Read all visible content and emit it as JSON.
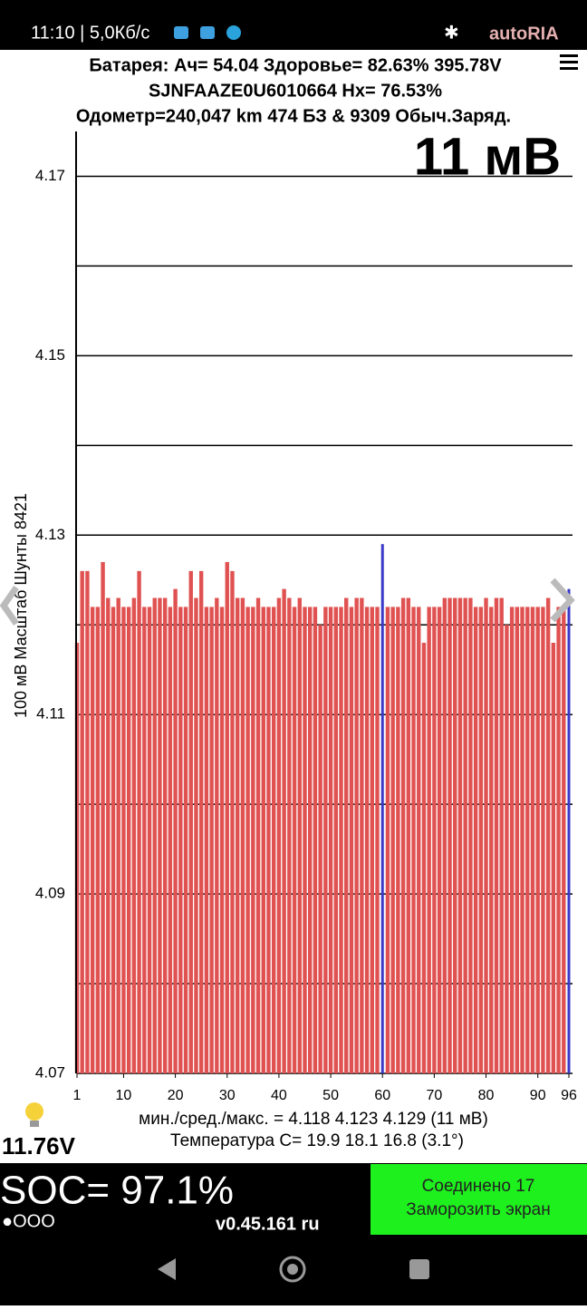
{
  "status_bar": {
    "time": "11:10 | 5,0Кб/с",
    "watermark": "autoRIA"
  },
  "header": {
    "line1": "Батарея:  Ач= 54.04  Здоровье= 82.63%   395.78V",
    "line2": "SJNFAAZE0U6010664   Hx= 76.53%",
    "line3": "Одометр=240,047 km 474 БЗ & 9309 Обыч.Заряд."
  },
  "chart_data": {
    "type": "bar",
    "y_label": "100 мВ Масштаб  Шунты 8421",
    "overlay": "11 мВ",
    "x": [
      1,
      2,
      3,
      4,
      5,
      6,
      7,
      8,
      9,
      10,
      11,
      12,
      13,
      14,
      15,
      16,
      17,
      18,
      19,
      20,
      21,
      22,
      23,
      24,
      25,
      26,
      27,
      28,
      29,
      30,
      31,
      32,
      33,
      34,
      35,
      36,
      37,
      38,
      39,
      40,
      41,
      42,
      43,
      44,
      45,
      46,
      47,
      48,
      49,
      50,
      51,
      52,
      53,
      54,
      55,
      56,
      57,
      58,
      59,
      60,
      61,
      62,
      63,
      64,
      65,
      66,
      67,
      68,
      69,
      70,
      71,
      72,
      73,
      74,
      75,
      76,
      77,
      78,
      79,
      80,
      81,
      82,
      83,
      84,
      85,
      86,
      87,
      88,
      89,
      90,
      91,
      92,
      93,
      94,
      95,
      96
    ],
    "values": [
      4.118,
      4.126,
      4.126,
      4.122,
      4.122,
      4.127,
      4.123,
      4.122,
      4.123,
      4.122,
      4.122,
      4.123,
      4.126,
      4.122,
      4.122,
      4.123,
      4.123,
      4.123,
      4.122,
      4.124,
      4.122,
      4.122,
      4.126,
      4.123,
      4.126,
      4.122,
      4.122,
      4.123,
      4.122,
      4.127,
      4.126,
      4.123,
      4.123,
      4.122,
      4.122,
      4.123,
      4.122,
      4.122,
      4.122,
      4.123,
      4.124,
      4.123,
      4.122,
      4.123,
      4.122,
      4.122,
      4.122,
      4.12,
      4.122,
      4.122,
      4.122,
      4.122,
      4.123,
      4.122,
      4.123,
      4.123,
      4.122,
      4.122,
      4.122,
      4.129,
      4.122,
      4.122,
      4.122,
      4.123,
      4.123,
      4.122,
      4.122,
      4.118,
      4.122,
      4.122,
      4.122,
      4.123,
      4.123,
      4.123,
      4.123,
      4.123,
      4.123,
      4.122,
      4.122,
      4.123,
      4.122,
      4.123,
      4.123,
      4.12,
      4.122,
      4.122,
      4.122,
      4.122,
      4.122,
      4.122,
      4.122,
      4.123,
      4.118,
      4.122,
      4.122,
      4.124
    ],
    "color": "#e05252",
    "highlight": {
      "color": "#3a3ac8",
      "x": [
        60,
        96
      ]
    },
    "xlim": [
      1,
      96
    ],
    "xticks": [
      1,
      10,
      20,
      30,
      40,
      50,
      60,
      70,
      80,
      90,
      96
    ],
    "ylim": [
      4.07,
      4.175
    ],
    "yticks": [
      4.07,
      4.09,
      4.11,
      4.13,
      4.15,
      4.17
    ],
    "minor_grid": [
      4.08,
      4.1,
      4.12,
      4.14,
      4.16
    ],
    "grid": true
  },
  "footer": {
    "stats": "мин./сред./макс. = 4.118 4.123 4.129  (11 мВ)",
    "temperature": "Температура С= 19.9  18.1  16.8  (3.1°)",
    "voltage_12v": "11.76V",
    "soc": "SOC= 97.1%",
    "dots": "●OOO",
    "version": "v0.45.161 ru",
    "connected": "Соединено 17",
    "freeze": "Заморозить экран"
  }
}
